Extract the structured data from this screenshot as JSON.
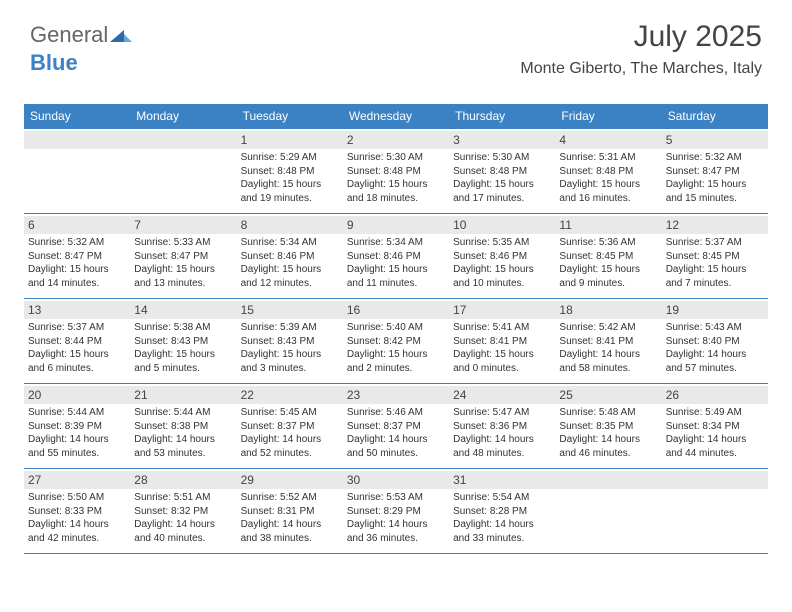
{
  "brand": {
    "part1": "General",
    "part2": "Blue"
  },
  "title": "July 2025",
  "subtitle": "Monte Giberto, The Marches, Italy",
  "colors": {
    "header_bg": "#3b82c4",
    "daynum_bg": "#e9e9e9",
    "divider": "#3b82c4",
    "text": "#333333",
    "title_text": "#444444",
    "background": "#ffffff"
  },
  "typography": {
    "title_fontsize": 30,
    "subtitle_fontsize": 16,
    "dayname_fontsize": 12,
    "daynum_fontsize": 12,
    "info_fontsize": 10
  },
  "daynames": [
    "Sunday",
    "Monday",
    "Tuesday",
    "Wednesday",
    "Thursday",
    "Friday",
    "Saturday"
  ],
  "weeks": [
    [
      {
        "n": "",
        "sr": "",
        "ss": "",
        "d1": "",
        "d2": ""
      },
      {
        "n": "",
        "sr": "",
        "ss": "",
        "d1": "",
        "d2": ""
      },
      {
        "n": "1",
        "sr": "Sunrise: 5:29 AM",
        "ss": "Sunset: 8:48 PM",
        "d1": "Daylight: 15 hours",
        "d2": "and 19 minutes."
      },
      {
        "n": "2",
        "sr": "Sunrise: 5:30 AM",
        "ss": "Sunset: 8:48 PM",
        "d1": "Daylight: 15 hours",
        "d2": "and 18 minutes."
      },
      {
        "n": "3",
        "sr": "Sunrise: 5:30 AM",
        "ss": "Sunset: 8:48 PM",
        "d1": "Daylight: 15 hours",
        "d2": "and 17 minutes."
      },
      {
        "n": "4",
        "sr": "Sunrise: 5:31 AM",
        "ss": "Sunset: 8:48 PM",
        "d1": "Daylight: 15 hours",
        "d2": "and 16 minutes."
      },
      {
        "n": "5",
        "sr": "Sunrise: 5:32 AM",
        "ss": "Sunset: 8:47 PM",
        "d1": "Daylight: 15 hours",
        "d2": "and 15 minutes."
      }
    ],
    [
      {
        "n": "6",
        "sr": "Sunrise: 5:32 AM",
        "ss": "Sunset: 8:47 PM",
        "d1": "Daylight: 15 hours",
        "d2": "and 14 minutes."
      },
      {
        "n": "7",
        "sr": "Sunrise: 5:33 AM",
        "ss": "Sunset: 8:47 PM",
        "d1": "Daylight: 15 hours",
        "d2": "and 13 minutes."
      },
      {
        "n": "8",
        "sr": "Sunrise: 5:34 AM",
        "ss": "Sunset: 8:46 PM",
        "d1": "Daylight: 15 hours",
        "d2": "and 12 minutes."
      },
      {
        "n": "9",
        "sr": "Sunrise: 5:34 AM",
        "ss": "Sunset: 8:46 PM",
        "d1": "Daylight: 15 hours",
        "d2": "and 11 minutes."
      },
      {
        "n": "10",
        "sr": "Sunrise: 5:35 AM",
        "ss": "Sunset: 8:46 PM",
        "d1": "Daylight: 15 hours",
        "d2": "and 10 minutes."
      },
      {
        "n": "11",
        "sr": "Sunrise: 5:36 AM",
        "ss": "Sunset: 8:45 PM",
        "d1": "Daylight: 15 hours",
        "d2": "and 9 minutes."
      },
      {
        "n": "12",
        "sr": "Sunrise: 5:37 AM",
        "ss": "Sunset: 8:45 PM",
        "d1": "Daylight: 15 hours",
        "d2": "and 7 minutes."
      }
    ],
    [
      {
        "n": "13",
        "sr": "Sunrise: 5:37 AM",
        "ss": "Sunset: 8:44 PM",
        "d1": "Daylight: 15 hours",
        "d2": "and 6 minutes."
      },
      {
        "n": "14",
        "sr": "Sunrise: 5:38 AM",
        "ss": "Sunset: 8:43 PM",
        "d1": "Daylight: 15 hours",
        "d2": "and 5 minutes."
      },
      {
        "n": "15",
        "sr": "Sunrise: 5:39 AM",
        "ss": "Sunset: 8:43 PM",
        "d1": "Daylight: 15 hours",
        "d2": "and 3 minutes."
      },
      {
        "n": "16",
        "sr": "Sunrise: 5:40 AM",
        "ss": "Sunset: 8:42 PM",
        "d1": "Daylight: 15 hours",
        "d2": "and 2 minutes."
      },
      {
        "n": "17",
        "sr": "Sunrise: 5:41 AM",
        "ss": "Sunset: 8:41 PM",
        "d1": "Daylight: 15 hours",
        "d2": "and 0 minutes."
      },
      {
        "n": "18",
        "sr": "Sunrise: 5:42 AM",
        "ss": "Sunset: 8:41 PM",
        "d1": "Daylight: 14 hours",
        "d2": "and 58 minutes."
      },
      {
        "n": "19",
        "sr": "Sunrise: 5:43 AM",
        "ss": "Sunset: 8:40 PM",
        "d1": "Daylight: 14 hours",
        "d2": "and 57 minutes."
      }
    ],
    [
      {
        "n": "20",
        "sr": "Sunrise: 5:44 AM",
        "ss": "Sunset: 8:39 PM",
        "d1": "Daylight: 14 hours",
        "d2": "and 55 minutes."
      },
      {
        "n": "21",
        "sr": "Sunrise: 5:44 AM",
        "ss": "Sunset: 8:38 PM",
        "d1": "Daylight: 14 hours",
        "d2": "and 53 minutes."
      },
      {
        "n": "22",
        "sr": "Sunrise: 5:45 AM",
        "ss": "Sunset: 8:37 PM",
        "d1": "Daylight: 14 hours",
        "d2": "and 52 minutes."
      },
      {
        "n": "23",
        "sr": "Sunrise: 5:46 AM",
        "ss": "Sunset: 8:37 PM",
        "d1": "Daylight: 14 hours",
        "d2": "and 50 minutes."
      },
      {
        "n": "24",
        "sr": "Sunrise: 5:47 AM",
        "ss": "Sunset: 8:36 PM",
        "d1": "Daylight: 14 hours",
        "d2": "and 48 minutes."
      },
      {
        "n": "25",
        "sr": "Sunrise: 5:48 AM",
        "ss": "Sunset: 8:35 PM",
        "d1": "Daylight: 14 hours",
        "d2": "and 46 minutes."
      },
      {
        "n": "26",
        "sr": "Sunrise: 5:49 AM",
        "ss": "Sunset: 8:34 PM",
        "d1": "Daylight: 14 hours",
        "d2": "and 44 minutes."
      }
    ],
    [
      {
        "n": "27",
        "sr": "Sunrise: 5:50 AM",
        "ss": "Sunset: 8:33 PM",
        "d1": "Daylight: 14 hours",
        "d2": "and 42 minutes."
      },
      {
        "n": "28",
        "sr": "Sunrise: 5:51 AM",
        "ss": "Sunset: 8:32 PM",
        "d1": "Daylight: 14 hours",
        "d2": "and 40 minutes."
      },
      {
        "n": "29",
        "sr": "Sunrise: 5:52 AM",
        "ss": "Sunset: 8:31 PM",
        "d1": "Daylight: 14 hours",
        "d2": "and 38 minutes."
      },
      {
        "n": "30",
        "sr": "Sunrise: 5:53 AM",
        "ss": "Sunset: 8:29 PM",
        "d1": "Daylight: 14 hours",
        "d2": "and 36 minutes."
      },
      {
        "n": "31",
        "sr": "Sunrise: 5:54 AM",
        "ss": "Sunset: 8:28 PM",
        "d1": "Daylight: 14 hours",
        "d2": "and 33 minutes."
      },
      {
        "n": "",
        "sr": "",
        "ss": "",
        "d1": "",
        "d2": ""
      },
      {
        "n": "",
        "sr": "",
        "ss": "",
        "d1": "",
        "d2": ""
      }
    ]
  ]
}
